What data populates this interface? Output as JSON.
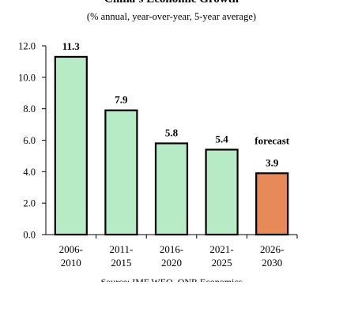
{
  "colors": {
    "historical": "#b6ebc6",
    "forecast": "#e8895a",
    "outline": "#000000"
  },
  "chart_data": {
    "type": "bar",
    "title": "China’s Economic Growth",
    "subtitle": "(% annual, year-over-year, 5-year average)",
    "categories": [
      "2006-2010",
      "2011-2015",
      "2016-2020",
      "2021-2025",
      "2026-2030"
    ],
    "category_lines": [
      [
        "2006-",
        "2010"
      ],
      [
        "2011-",
        "2015"
      ],
      [
        "2016-",
        "2020"
      ],
      [
        "2021-",
        "2025"
      ],
      [
        "2026-",
        "2030"
      ]
    ],
    "values": [
      11.3,
      7.9,
      5.8,
      5.4,
      3.9
    ],
    "value_labels": [
      "11.3",
      "7.9",
      "5.8",
      "5.4",
      "3.9"
    ],
    "forecast_index": 4,
    "annotation": "forecast",
    "ylim": [
      0,
      12
    ],
    "yticks": [
      "0.0",
      "2.0",
      "4.0",
      "6.0",
      "8.0",
      "10.0",
      "12.0"
    ],
    "grid": false,
    "source": "Source: IMF WEO, ONR Economics"
  }
}
